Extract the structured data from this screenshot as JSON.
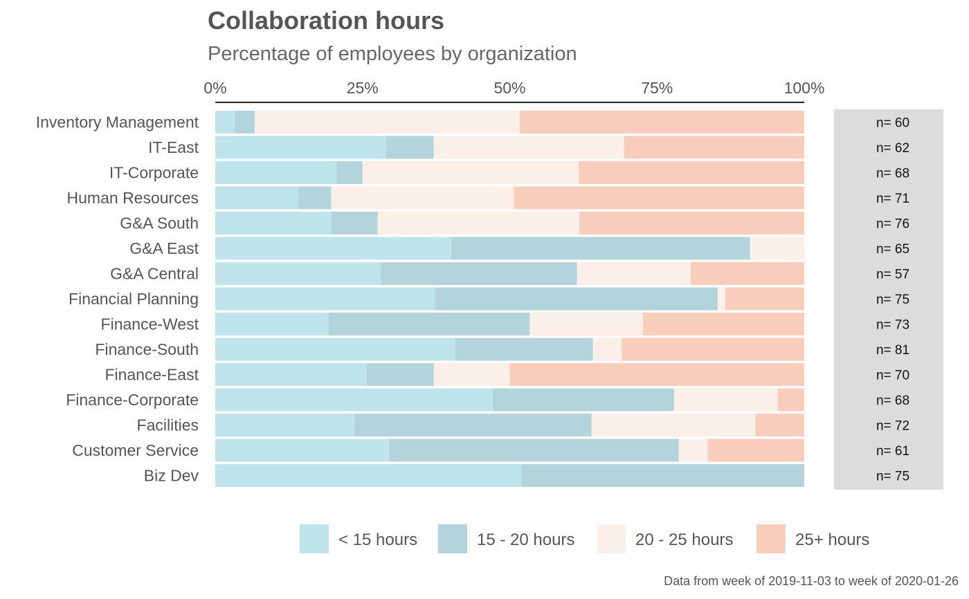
{
  "chart_data": {
    "type": "bar",
    "orientation": "horizontal",
    "stacked": "percent",
    "title": "Collaboration hours",
    "subtitle": "Percentage of employees by organization",
    "caption": "Data from week of 2019-11-03 to week of 2020-01-26",
    "x_ticks": [
      "0%",
      "25%",
      "50%",
      "75%",
      "100%"
    ],
    "xlim": [
      0,
      100
    ],
    "x_axis_position": "top",
    "legend_position": "bottom",
    "categories": [
      "Inventory Management",
      "IT-East",
      "IT-Corporate",
      "Human Resources",
      "G&A South",
      "G&A East",
      "G&A Central",
      "Financial Planning",
      "Finance-West",
      "Finance-South",
      "Finance-East",
      "Finance-Corporate",
      "Facilities",
      "Customer Service",
      "Biz Dev"
    ],
    "n_labels": [
      "n= 60",
      "n= 62",
      "n= 68",
      "n= 71",
      "n= 76",
      "n= 65",
      "n= 57",
      "n= 75",
      "n= 73",
      "n= 81",
      "n= 70",
      "n= 68",
      "n= 72",
      "n= 61",
      "n= 75"
    ],
    "series": [
      {
        "name": "< 15 hours",
        "color": "#bfe4ec",
        "values": [
          3.3,
          29.0,
          20.6,
          14.1,
          19.7,
          40.0,
          28.1,
          37.3,
          19.2,
          40.7,
          25.7,
          47.1,
          23.6,
          29.5,
          52.0
        ]
      },
      {
        "name": "15 - 20 hours",
        "color": "#b4d4db",
        "values": [
          3.4,
          8.1,
          4.4,
          5.6,
          7.9,
          50.8,
          33.3,
          48.0,
          34.2,
          23.4,
          11.4,
          30.8,
          40.3,
          49.2,
          48.0
        ]
      },
      {
        "name": "20 - 25 hours",
        "color": "#fbefea",
        "values": [
          45.0,
          32.3,
          36.7,
          31.0,
          34.2,
          9.2,
          19.3,
          1.3,
          19.2,
          4.9,
          12.9,
          17.6,
          27.8,
          4.9,
          0.0
        ]
      },
      {
        "name": "25+ hours",
        "color": "#f8cdbc",
        "values": [
          48.3,
          30.6,
          38.3,
          49.3,
          38.2,
          0.0,
          19.3,
          13.4,
          27.4,
          31.0,
          50.0,
          4.5,
          8.3,
          16.4,
          0.0
        ]
      }
    ]
  }
}
